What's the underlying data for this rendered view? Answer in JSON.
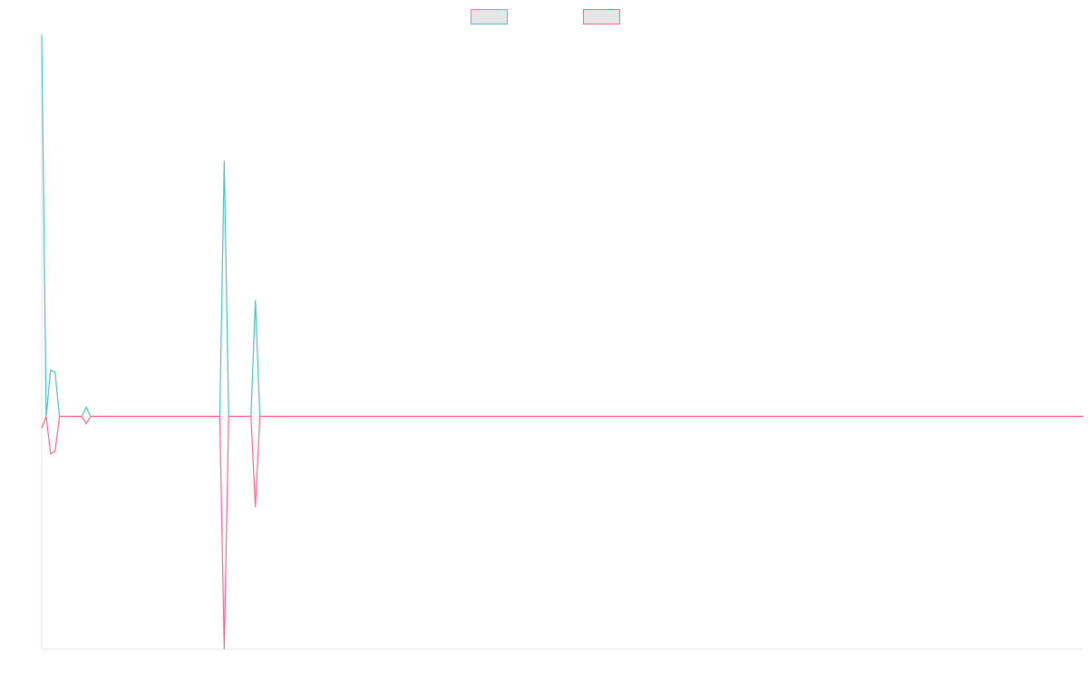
{
  "chart_data": {
    "type": "line",
    "title": "",
    "xlabel": "",
    "ylabel": "",
    "grid": false,
    "legend_position": "top-center",
    "ylim": [
      -100,
      165
    ],
    "x": [
      0,
      1,
      2,
      3,
      4,
      5,
      6,
      7,
      8,
      9,
      10,
      11,
      12,
      13,
      14,
      15,
      16,
      17,
      18,
      19,
      20,
      21,
      22,
      23,
      24,
      25,
      26,
      27,
      28,
      29,
      30,
      31,
      32,
      33,
      34,
      35,
      36,
      37,
      38,
      39,
      40,
      41,
      42,
      43,
      44,
      45,
      46,
      47,
      48,
      49,
      50,
      51,
      52,
      53,
      54,
      55,
      56,
      57,
      58,
      59,
      60,
      61,
      62,
      63,
      64,
      65,
      66,
      67,
      68,
      69,
      70,
      71,
      72,
      73,
      74,
      75,
      76,
      77,
      78,
      79,
      80,
      81,
      82,
      83,
      84,
      85,
      86,
      87,
      88,
      89,
      90,
      91,
      92,
      93,
      94,
      95,
      96,
      97,
      98,
      99,
      100,
      101,
      102,
      103,
      104,
      105,
      106,
      107,
      108,
      109,
      110,
      111,
      112,
      113,
      114,
      115,
      116,
      117,
      118,
      119,
      120,
      121,
      122,
      123,
      124,
      125,
      126,
      127,
      128,
      129,
      130,
      131,
      132,
      133,
      134,
      135,
      136,
      137,
      138,
      139,
      140,
      141,
      142,
      143,
      144,
      145,
      146,
      147,
      148,
      149,
      150,
      151,
      152,
      153,
      154,
      155,
      156,
      157,
      158,
      159,
      160,
      161,
      162,
      163,
      164,
      165,
      166,
      167,
      168,
      169,
      170,
      171,
      172,
      173,
      174,
      175,
      176,
      177,
      178,
      179,
      180,
      181,
      182,
      183,
      184,
      185,
      186,
      187,
      188,
      189,
      190,
      191,
      192,
      193,
      194,
      195,
      196,
      197,
      198,
      199,
      200,
      201,
      202,
      203,
      204,
      205,
      206,
      207,
      208,
      209,
      210,
      211,
      212,
      213,
      214,
      215,
      216,
      217,
      218,
      219,
      220,
      221,
      222,
      223,
      224,
      225,
      226,
      227,
      228,
      229,
      230,
      231,
      232,
      233,
      234
    ],
    "series": [
      {
        "color": "#4bc0c0",
        "values": [
          164,
          0,
          20,
          19,
          0,
          0,
          0,
          0,
          0,
          0,
          4,
          0,
          0,
          0,
          0,
          0,
          0,
          0,
          0,
          0,
          0,
          0,
          0,
          0,
          0,
          0,
          0,
          0,
          0,
          0,
          0,
          0,
          0,
          0,
          0,
          0,
          0,
          0,
          0,
          0,
          0,
          110,
          0,
          0,
          0,
          0,
          0,
          0,
          50,
          0,
          0,
          0,
          0,
          0,
          0,
          0,
          0,
          0,
          0,
          0,
          0,
          0,
          0,
          0,
          0,
          0,
          0,
          0,
          0,
          0,
          0,
          0,
          0,
          0,
          0,
          0,
          0,
          0,
          0,
          0,
          0,
          0,
          0,
          0,
          0,
          0,
          0,
          0,
          0,
          0,
          0,
          0,
          0,
          0,
          0,
          0,
          0,
          0,
          0,
          0,
          0,
          0,
          0,
          0,
          0,
          0,
          0,
          0,
          0,
          0,
          0,
          0,
          0,
          0,
          0,
          0,
          0,
          0,
          0,
          0,
          0,
          0,
          0,
          0,
          0,
          0,
          0,
          0,
          0,
          0,
          0,
          0,
          0,
          0,
          0,
          0,
          0,
          0,
          0,
          0,
          0,
          0,
          0,
          0,
          0,
          0,
          0,
          0,
          0,
          0,
          0,
          0,
          0,
          0,
          0,
          0,
          0,
          0,
          0,
          0,
          0,
          0,
          0,
          0,
          0,
          0,
          0,
          0,
          0,
          0,
          0,
          0,
          0,
          0,
          0,
          0,
          0,
          0,
          0,
          0,
          0,
          0,
          0,
          0,
          0,
          0,
          0,
          0,
          0,
          0,
          0,
          0,
          0,
          0,
          0,
          0,
          0,
          0,
          0,
          0,
          0,
          0,
          0,
          0,
          0,
          0,
          0,
          0,
          0,
          0,
          0,
          0,
          0,
          0,
          0,
          0,
          0,
          0,
          0,
          0,
          0,
          0,
          0,
          0,
          0,
          0,
          0,
          0,
          0,
          0,
          0,
          0,
          0,
          0,
          0
        ]
      },
      {
        "color": "#ff6384",
        "values": [
          -5,
          0,
          -16,
          -15,
          0,
          0,
          0,
          0,
          0,
          0,
          -3,
          0,
          0,
          0,
          0,
          0,
          0,
          0,
          0,
          0,
          0,
          0,
          0,
          0,
          0,
          0,
          0,
          0,
          0,
          0,
          0,
          0,
          0,
          0,
          0,
          0,
          0,
          0,
          0,
          0,
          0,
          -100,
          0,
          0,
          0,
          0,
          0,
          0,
          -39,
          0,
          0,
          0,
          0,
          0,
          0,
          0,
          0,
          0,
          0,
          0,
          0,
          0,
          0,
          0,
          0,
          0,
          0,
          0,
          0,
          0,
          0,
          0,
          0,
          0,
          0,
          0,
          0,
          0,
          0,
          0,
          0,
          0,
          0,
          0,
          0,
          0,
          0,
          0,
          0,
          0,
          0,
          0,
          0,
          0,
          0,
          0,
          0,
          0,
          0,
          0,
          0,
          0,
          0,
          0,
          0,
          0,
          0,
          0,
          0,
          0,
          0,
          0,
          0,
          0,
          0,
          0,
          0,
          0,
          0,
          0,
          0,
          0,
          0,
          0,
          0,
          0,
          0,
          0,
          0,
          0,
          0,
          0,
          0,
          0,
          0,
          0,
          0,
          0,
          0,
          0,
          0,
          0,
          0,
          0,
          0,
          0,
          0,
          0,
          0,
          0,
          0,
          0,
          0,
          0,
          0,
          0,
          0,
          0,
          0,
          0,
          0,
          0,
          0,
          0,
          0,
          0,
          0,
          0,
          0,
          0,
          0,
          0,
          0,
          0,
          0,
          0,
          0,
          0,
          0,
          0,
          0,
          0,
          0,
          0,
          0,
          0,
          0,
          0,
          0,
          0,
          0,
          0,
          0,
          0,
          0,
          0,
          0,
          0,
          0,
          0,
          0,
          0,
          0,
          0,
          0,
          0,
          0,
          0,
          0,
          0,
          0,
          0,
          0,
          0,
          0,
          0,
          0,
          0,
          0,
          0,
          0,
          0,
          0,
          0,
          0,
          0,
          0,
          0,
          0,
          0,
          0,
          0,
          0,
          0,
          0
        ]
      }
    ]
  }
}
